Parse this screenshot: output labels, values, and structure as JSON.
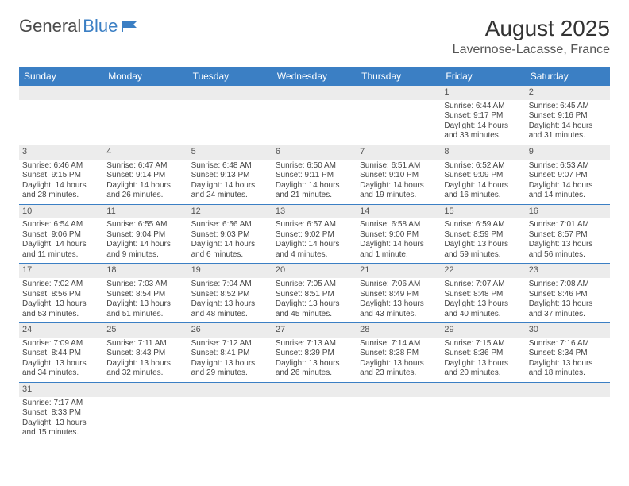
{
  "logo": {
    "text1": "General",
    "text2": "Blue"
  },
  "title": "August 2025",
  "location": "Lavernose-Lacasse, France",
  "columns": [
    "Sunday",
    "Monday",
    "Tuesday",
    "Wednesday",
    "Thursday",
    "Friday",
    "Saturday"
  ],
  "colors": {
    "header_bg": "#3b7fc4",
    "header_fg": "#ffffff",
    "daynum_bg": "#ececec",
    "border": "#3b7fc4",
    "text": "#444444"
  },
  "weeks": [
    [
      null,
      null,
      null,
      null,
      null,
      {
        "n": "1",
        "sr": "6:44 AM",
        "ss": "9:17 PM",
        "dl": "14 hours and 33 minutes."
      },
      {
        "n": "2",
        "sr": "6:45 AM",
        "ss": "9:16 PM",
        "dl": "14 hours and 31 minutes."
      }
    ],
    [
      {
        "n": "3",
        "sr": "6:46 AM",
        "ss": "9:15 PM",
        "dl": "14 hours and 28 minutes."
      },
      {
        "n": "4",
        "sr": "6:47 AM",
        "ss": "9:14 PM",
        "dl": "14 hours and 26 minutes."
      },
      {
        "n": "5",
        "sr": "6:48 AM",
        "ss": "9:13 PM",
        "dl": "14 hours and 24 minutes."
      },
      {
        "n": "6",
        "sr": "6:50 AM",
        "ss": "9:11 PM",
        "dl": "14 hours and 21 minutes."
      },
      {
        "n": "7",
        "sr": "6:51 AM",
        "ss": "9:10 PM",
        "dl": "14 hours and 19 minutes."
      },
      {
        "n": "8",
        "sr": "6:52 AM",
        "ss": "9:09 PM",
        "dl": "14 hours and 16 minutes."
      },
      {
        "n": "9",
        "sr": "6:53 AM",
        "ss": "9:07 PM",
        "dl": "14 hours and 14 minutes."
      }
    ],
    [
      {
        "n": "10",
        "sr": "6:54 AM",
        "ss": "9:06 PM",
        "dl": "14 hours and 11 minutes."
      },
      {
        "n": "11",
        "sr": "6:55 AM",
        "ss": "9:04 PM",
        "dl": "14 hours and 9 minutes."
      },
      {
        "n": "12",
        "sr": "6:56 AM",
        "ss": "9:03 PM",
        "dl": "14 hours and 6 minutes."
      },
      {
        "n": "13",
        "sr": "6:57 AM",
        "ss": "9:02 PM",
        "dl": "14 hours and 4 minutes."
      },
      {
        "n": "14",
        "sr": "6:58 AM",
        "ss": "9:00 PM",
        "dl": "14 hours and 1 minute."
      },
      {
        "n": "15",
        "sr": "6:59 AM",
        "ss": "8:59 PM",
        "dl": "13 hours and 59 minutes."
      },
      {
        "n": "16",
        "sr": "7:01 AM",
        "ss": "8:57 PM",
        "dl": "13 hours and 56 minutes."
      }
    ],
    [
      {
        "n": "17",
        "sr": "7:02 AM",
        "ss": "8:56 PM",
        "dl": "13 hours and 53 minutes."
      },
      {
        "n": "18",
        "sr": "7:03 AM",
        "ss": "8:54 PM",
        "dl": "13 hours and 51 minutes."
      },
      {
        "n": "19",
        "sr": "7:04 AM",
        "ss": "8:52 PM",
        "dl": "13 hours and 48 minutes."
      },
      {
        "n": "20",
        "sr": "7:05 AM",
        "ss": "8:51 PM",
        "dl": "13 hours and 45 minutes."
      },
      {
        "n": "21",
        "sr": "7:06 AM",
        "ss": "8:49 PM",
        "dl": "13 hours and 43 minutes."
      },
      {
        "n": "22",
        "sr": "7:07 AM",
        "ss": "8:48 PM",
        "dl": "13 hours and 40 minutes."
      },
      {
        "n": "23",
        "sr": "7:08 AM",
        "ss": "8:46 PM",
        "dl": "13 hours and 37 minutes."
      }
    ],
    [
      {
        "n": "24",
        "sr": "7:09 AM",
        "ss": "8:44 PM",
        "dl": "13 hours and 34 minutes."
      },
      {
        "n": "25",
        "sr": "7:11 AM",
        "ss": "8:43 PM",
        "dl": "13 hours and 32 minutes."
      },
      {
        "n": "26",
        "sr": "7:12 AM",
        "ss": "8:41 PM",
        "dl": "13 hours and 29 minutes."
      },
      {
        "n": "27",
        "sr": "7:13 AM",
        "ss": "8:39 PM",
        "dl": "13 hours and 26 minutes."
      },
      {
        "n": "28",
        "sr": "7:14 AM",
        "ss": "8:38 PM",
        "dl": "13 hours and 23 minutes."
      },
      {
        "n": "29",
        "sr": "7:15 AM",
        "ss": "8:36 PM",
        "dl": "13 hours and 20 minutes."
      },
      {
        "n": "30",
        "sr": "7:16 AM",
        "ss": "8:34 PM",
        "dl": "13 hours and 18 minutes."
      }
    ],
    [
      {
        "n": "31",
        "sr": "7:17 AM",
        "ss": "8:33 PM",
        "dl": "13 hours and 15 minutes."
      },
      null,
      null,
      null,
      null,
      null,
      null
    ]
  ],
  "labels": {
    "sunrise": "Sunrise:",
    "sunset": "Sunset:",
    "daylight": "Daylight:"
  }
}
